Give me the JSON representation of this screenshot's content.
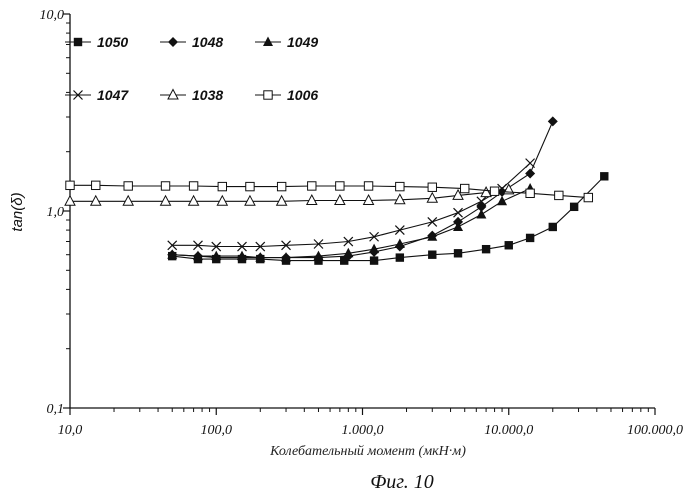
{
  "chart_data": {
    "type": "line",
    "xlabel": "Колебательный момент (мкН·м)",
    "ylabel": "tan(δ)",
    "caption": "Фиг. 10",
    "x_scale": "log",
    "y_scale": "log",
    "xlim": [
      10,
      100000
    ],
    "ylim": [
      0.1,
      10
    ],
    "grid": false,
    "x_ticks": [
      {
        "value": 10,
        "label": "10,0"
      },
      {
        "value": 100,
        "label": "100,0"
      },
      {
        "value": 1000,
        "label": "1.000,0"
      },
      {
        "value": 10000,
        "label": "10.000,0"
      },
      {
        "value": 100000,
        "label": "100.000,0"
      }
    ],
    "y_ticks": [
      {
        "value": 0.1,
        "label": "0,1"
      },
      {
        "value": 1,
        "label": "1,0"
      },
      {
        "value": 10,
        "label": "10,0"
      }
    ],
    "series": [
      {
        "name": "1050",
        "marker": "filled-square",
        "points": [
          [
            50,
            0.59
          ],
          [
            75,
            0.57
          ],
          [
            100,
            0.57
          ],
          [
            150,
            0.57
          ],
          [
            200,
            0.57
          ],
          [
            300,
            0.56
          ],
          [
            500,
            0.56
          ],
          [
            750,
            0.56
          ],
          [
            1200,
            0.56
          ],
          [
            1800,
            0.58
          ],
          [
            3000,
            0.6
          ],
          [
            4500,
            0.61
          ],
          [
            7000,
            0.64
          ],
          [
            10000,
            0.67
          ],
          [
            14000,
            0.73
          ],
          [
            20000,
            0.83
          ],
          [
            28000,
            1.05
          ],
          [
            45000,
            1.5
          ]
        ]
      },
      {
        "name": "1048",
        "marker": "filled-diamond",
        "points": [
          [
            50,
            0.6
          ],
          [
            75,
            0.59
          ],
          [
            100,
            0.58
          ],
          [
            150,
            0.58
          ],
          [
            200,
            0.58
          ],
          [
            300,
            0.58
          ],
          [
            500,
            0.58
          ],
          [
            800,
            0.59
          ],
          [
            1200,
            0.62
          ],
          [
            1800,
            0.66
          ],
          [
            3000,
            0.75
          ],
          [
            4500,
            0.88
          ],
          [
            6500,
            1.05
          ],
          [
            9000,
            1.25
          ],
          [
            14000,
            1.55
          ],
          [
            20000,
            2.85
          ]
        ]
      },
      {
        "name": "1049",
        "marker": "filled-triangle",
        "points": [
          [
            50,
            0.6
          ],
          [
            75,
            0.59
          ],
          [
            100,
            0.59
          ],
          [
            150,
            0.59
          ],
          [
            200,
            0.58
          ],
          [
            300,
            0.58
          ],
          [
            500,
            0.59
          ],
          [
            800,
            0.61
          ],
          [
            1200,
            0.64
          ],
          [
            1800,
            0.68
          ],
          [
            3000,
            0.74
          ],
          [
            4500,
            0.83
          ],
          [
            6500,
            0.96
          ],
          [
            9000,
            1.12
          ],
          [
            14000,
            1.3
          ]
        ]
      },
      {
        "name": "1047",
        "marker": "x",
        "points": [
          [
            50,
            0.67
          ],
          [
            75,
            0.67
          ],
          [
            100,
            0.66
          ],
          [
            150,
            0.66
          ],
          [
            200,
            0.66
          ],
          [
            300,
            0.67
          ],
          [
            500,
            0.68
          ],
          [
            800,
            0.7
          ],
          [
            1200,
            0.74
          ],
          [
            1800,
            0.8
          ],
          [
            3000,
            0.88
          ],
          [
            4500,
            0.98
          ],
          [
            6500,
            1.12
          ],
          [
            9000,
            1.3
          ],
          [
            14000,
            1.75
          ]
        ]
      },
      {
        "name": "1038",
        "marker": "open-triangle",
        "points": [
          [
            10,
            1.12
          ],
          [
            15,
            1.12
          ],
          [
            25,
            1.12
          ],
          [
            45,
            1.12
          ],
          [
            70,
            1.12
          ],
          [
            110,
            1.12
          ],
          [
            170,
            1.12
          ],
          [
            280,
            1.12
          ],
          [
            450,
            1.13
          ],
          [
            700,
            1.13
          ],
          [
            1100,
            1.13
          ],
          [
            1800,
            1.14
          ],
          [
            3000,
            1.16
          ],
          [
            4500,
            1.2
          ],
          [
            7000,
            1.24
          ],
          [
            10000,
            1.28
          ]
        ]
      },
      {
        "name": "1006",
        "marker": "open-square",
        "points": [
          [
            10,
            1.35
          ],
          [
            15,
            1.35
          ],
          [
            25,
            1.34
          ],
          [
            45,
            1.34
          ],
          [
            70,
            1.34
          ],
          [
            110,
            1.33
          ],
          [
            170,
            1.33
          ],
          [
            280,
            1.33
          ],
          [
            450,
            1.34
          ],
          [
            700,
            1.34
          ],
          [
            1100,
            1.34
          ],
          [
            1800,
            1.33
          ],
          [
            3000,
            1.32
          ],
          [
            5000,
            1.3
          ],
          [
            8000,
            1.26
          ],
          [
            14000,
            1.23
          ],
          [
            22000,
            1.2
          ],
          [
            35000,
            1.17
          ]
        ]
      }
    ],
    "legend": [
      {
        "name": "1050",
        "marker": "filled-square"
      },
      {
        "name": "1048",
        "marker": "filled-diamond"
      },
      {
        "name": "1049",
        "marker": "filled-triangle"
      },
      {
        "name": "1047",
        "marker": "x"
      },
      {
        "name": "1038",
        "marker": "open-triangle"
      },
      {
        "name": "1006",
        "marker": "open-square"
      }
    ],
    "legend_placement": "top-left"
  }
}
